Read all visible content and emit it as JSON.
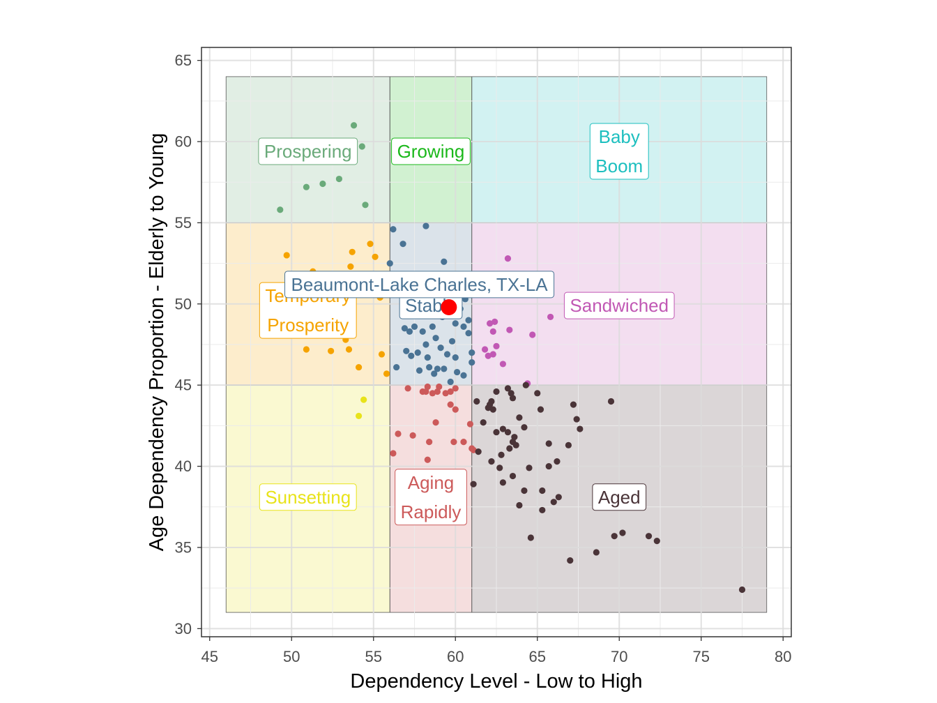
{
  "chart_data": {
    "type": "scatter",
    "title": "",
    "xlabel": "Dependency Level - Low to High",
    "ylabel": "Age Dependency Proportion - Elderly to Young",
    "xlim": [
      44.5,
      80.5
    ],
    "ylim": [
      29.5,
      65.8
    ],
    "x_ticks": [
      45,
      50,
      55,
      60,
      65,
      70,
      75,
      80
    ],
    "y_ticks": [
      30,
      35,
      40,
      45,
      50,
      55,
      60,
      65
    ],
    "grid": true,
    "legend": "none",
    "zones": [
      {
        "name": "Prospering",
        "lines": [
          "Prospering"
        ],
        "x": [
          46,
          56
        ],
        "y": [
          55,
          64
        ],
        "color": "#6aaa7a",
        "label_at": [
          51,
          59.4
        ]
      },
      {
        "name": "Growing",
        "lines": [
          "Growing"
        ],
        "x": [
          56,
          61
        ],
        "y": [
          55,
          64
        ],
        "color": "#1bb81b",
        "label_at": [
          58.5,
          59.4
        ]
      },
      {
        "name": "Baby Boom",
        "lines": [
          "Baby",
          "Boom"
        ],
        "x": [
          61,
          79
        ],
        "y": [
          55,
          64
        ],
        "color": "#1dbfbf",
        "label_at": [
          70,
          59.4
        ]
      },
      {
        "name": "Temporary Prosperity",
        "lines": [
          "Temporary",
          "Prosperity"
        ],
        "x": [
          46,
          56
        ],
        "y": [
          45,
          55
        ],
        "color": "#f5a300",
        "label_at": [
          51,
          49.6
        ]
      },
      {
        "name": "Stable",
        "lines": [
          "Stable"
        ],
        "x": [
          56,
          61
        ],
        "y": [
          45,
          55
        ],
        "color": "#4a7394",
        "label_at": [
          58.5,
          49.9
        ]
      },
      {
        "name": "Sandwiched",
        "lines": [
          "Sandwiched"
        ],
        "x": [
          61,
          79
        ],
        "y": [
          45,
          55
        ],
        "color": "#c158b4",
        "label_at": [
          70,
          49.9
        ]
      },
      {
        "name": "Sunsetting",
        "lines": [
          "Sunsetting"
        ],
        "x": [
          46,
          56
        ],
        "y": [
          31,
          45
        ],
        "color": "#e8e31a",
        "label_at": [
          51,
          38.1
        ]
      },
      {
        "name": "Aging Rapidly",
        "lines": [
          "Aging",
          "Rapidly"
        ],
        "x": [
          56,
          61
        ],
        "y": [
          31,
          45
        ],
        "color": "#cc5a5a",
        "label_at": [
          58.5,
          38.1
        ]
      },
      {
        "name": "Aged",
        "lines": [
          "Aged"
        ],
        "x": [
          61,
          79
        ],
        "y": [
          31,
          45
        ],
        "color": "#4a3438",
        "label_at": [
          70,
          38.1
        ]
      }
    ],
    "series": [
      {
        "name": "Prospering",
        "color": "#6aaa7a",
        "points": [
          [
            53.8,
            61.0
          ],
          [
            54.3,
            59.7
          ],
          [
            49.3,
            55.8
          ],
          [
            50.9,
            57.2
          ],
          [
            51.9,
            57.4
          ],
          [
            52.9,
            57.7
          ],
          [
            54.5,
            56.1
          ]
        ]
      },
      {
        "name": "Temporary Prosperity",
        "color": "#f5a300",
        "points": [
          [
            49.7,
            53.0
          ],
          [
            51.3,
            52.0
          ],
          [
            53.7,
            53.2
          ],
          [
            53.6,
            52.3
          ],
          [
            54.8,
            53.7
          ],
          [
            55.1,
            52.9
          ],
          [
            52.7,
            51.5
          ],
          [
            54.4,
            51.7
          ],
          [
            55.2,
            51.3
          ],
          [
            53.3,
            47.8
          ],
          [
            53.5,
            47.2
          ],
          [
            52.4,
            47.1
          ],
          [
            50.9,
            47.2
          ],
          [
            54.1,
            46.1
          ],
          [
            55.5,
            46.9
          ],
          [
            55.8,
            45.7
          ],
          [
            55.4,
            50.4
          ],
          [
            52.2,
            50.9
          ]
        ]
      },
      {
        "name": "Stable",
        "color": "#4a7394",
        "points": [
          [
            56.2,
            54.6
          ],
          [
            56.8,
            53.7
          ],
          [
            58.2,
            54.8
          ],
          [
            59.3,
            52.6
          ],
          [
            56.0,
            52.5
          ],
          [
            58.3,
            50.6
          ],
          [
            59.6,
            50.4
          ],
          [
            60.6,
            50.3
          ],
          [
            59.0,
            49.8
          ],
          [
            58.6,
            48.6
          ],
          [
            58.0,
            48.3
          ],
          [
            58.8,
            47.9
          ],
          [
            59.8,
            47.7
          ],
          [
            60.5,
            48.6
          ],
          [
            60.0,
            48.8
          ],
          [
            60.8,
            48.2
          ],
          [
            57.2,
            48.3
          ],
          [
            56.9,
            48.5
          ],
          [
            57.5,
            48.6
          ],
          [
            58.2,
            47.5
          ],
          [
            59.1,
            47.3
          ],
          [
            59.5,
            46.9
          ],
          [
            57.7,
            47.0
          ],
          [
            58.3,
            46.7
          ],
          [
            60.0,
            46.7
          ],
          [
            61.0,
            47.0
          ],
          [
            57.0,
            47.1
          ],
          [
            57.3,
            46.8
          ],
          [
            56.4,
            46.1
          ],
          [
            57.8,
            45.9
          ],
          [
            58.4,
            46.1
          ],
          [
            58.9,
            46.0
          ],
          [
            58.7,
            45.7
          ],
          [
            59.3,
            46.0
          ],
          [
            59.7,
            45.2
          ],
          [
            60.1,
            45.8
          ],
          [
            60.5,
            45.6
          ],
          [
            61.0,
            46.4
          ],
          [
            60.8,
            49.0
          ],
          [
            57.5,
            49.3
          ],
          [
            60.3,
            49.7
          ],
          [
            59.2,
            49.2
          ]
        ]
      },
      {
        "name": "Sandwiched",
        "color": "#c158b4",
        "points": [
          [
            63.2,
            52.8
          ],
          [
            62.1,
            48.8
          ],
          [
            62.4,
            48.9
          ],
          [
            62.3,
            48.3
          ],
          [
            63.3,
            48.4
          ],
          [
            64.7,
            48.1
          ],
          [
            65.8,
            49.2
          ],
          [
            62.5,
            47.4
          ],
          [
            61.8,
            47.2
          ],
          [
            62.3,
            46.9
          ],
          [
            62.9,
            46.3
          ],
          [
            64.4,
            45.1
          ],
          [
            62.0,
            46.8
          ]
        ]
      },
      {
        "name": "Sunsetting",
        "color": "#e8e31a",
        "points": [
          [
            54.4,
            44.1
          ],
          [
            54.1,
            43.1
          ]
        ]
      },
      {
        "name": "Aging Rapidly",
        "color": "#cc5a5a",
        "points": [
          [
            57.1,
            44.8
          ],
          [
            58.0,
            44.6
          ],
          [
            58.2,
            44.6
          ],
          [
            58.6,
            44.5
          ],
          [
            58.3,
            44.9
          ],
          [
            58.9,
            44.6
          ],
          [
            59.4,
            44.5
          ],
          [
            59.0,
            44.9
          ],
          [
            59.7,
            44.6
          ],
          [
            60.0,
            44.8
          ],
          [
            59.7,
            43.8
          ],
          [
            60.0,
            43.5
          ],
          [
            58.8,
            42.7
          ],
          [
            60.9,
            42.6
          ],
          [
            56.5,
            42.0
          ],
          [
            56.2,
            40.8
          ],
          [
            58.3,
            40.4
          ],
          [
            57.4,
            41.9
          ],
          [
            58.4,
            41.5
          ],
          [
            59.9,
            41.5
          ],
          [
            60.5,
            41.5
          ],
          [
            61.1,
            41.0
          ],
          [
            61.0,
            41.1
          ]
        ]
      },
      {
        "name": "Aged",
        "color": "#4a3438",
        "points": [
          [
            61.3,
            44.0
          ],
          [
            62.2,
            44.0
          ],
          [
            62.5,
            44.6
          ],
          [
            62.0,
            43.6
          ],
          [
            62.1,
            43.8
          ],
          [
            62.3,
            43.5
          ],
          [
            63.2,
            44.8
          ],
          [
            63.4,
            44.5
          ],
          [
            63.5,
            44.2
          ],
          [
            64.3,
            45.0
          ],
          [
            65.0,
            44.5
          ],
          [
            65.2,
            43.5
          ],
          [
            67.2,
            43.8
          ],
          [
            69.5,
            44.0
          ],
          [
            61.7,
            42.7
          ],
          [
            62.5,
            42.1
          ],
          [
            62.9,
            42.3
          ],
          [
            63.2,
            42.1
          ],
          [
            63.6,
            41.8
          ],
          [
            63.5,
            41.5
          ],
          [
            63.3,
            41.1
          ],
          [
            63.9,
            43.0
          ],
          [
            64.2,
            42.4
          ],
          [
            65.7,
            41.4
          ],
          [
            66.9,
            41.3
          ],
          [
            67.4,
            42.9
          ],
          [
            67.6,
            42.3
          ],
          [
            61.4,
            40.9
          ],
          [
            62.2,
            40.3
          ],
          [
            62.8,
            40.7
          ],
          [
            63.7,
            41.3
          ],
          [
            64.5,
            39.9
          ],
          [
            66.2,
            40.3
          ],
          [
            65.7,
            40.0
          ],
          [
            62.7,
            39.9
          ],
          [
            61.1,
            38.9
          ],
          [
            62.9,
            39.0
          ],
          [
            63.5,
            39.4
          ],
          [
            64.2,
            38.5
          ],
          [
            63.9,
            37.6
          ],
          [
            65.3,
            38.5
          ],
          [
            66.0,
            37.8
          ],
          [
            66.3,
            38.1
          ],
          [
            65.3,
            37.3
          ],
          [
            64.6,
            35.6
          ],
          [
            67.0,
            34.2
          ],
          [
            68.6,
            34.7
          ],
          [
            69.7,
            35.7
          ],
          [
            70.2,
            35.9
          ],
          [
            71.8,
            35.7
          ],
          [
            72.3,
            35.4
          ],
          [
            77.5,
            32.4
          ]
        ]
      }
    ],
    "highlight": {
      "label": "Beaumont-Lake Charles, TX-LA",
      "x": 59.6,
      "y": 49.8,
      "color": "#ff0000",
      "label_color": "#4a7394"
    }
  }
}
